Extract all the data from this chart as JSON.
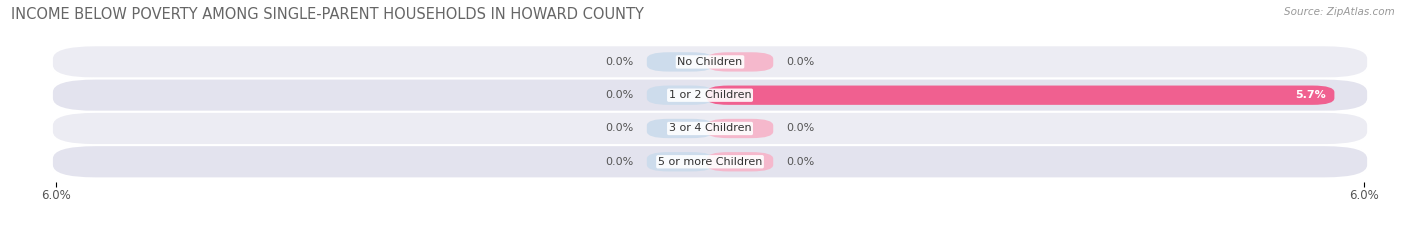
{
  "title": "INCOME BELOW POVERTY AMONG SINGLE-PARENT HOUSEHOLDS IN HOWARD COUNTY",
  "source": "Source: ZipAtlas.com",
  "categories": [
    "No Children",
    "1 or 2 Children",
    "3 or 4 Children",
    "5 or more Children"
  ],
  "single_father": [
    0.0,
    0.0,
    0.0,
    0.0
  ],
  "single_mother": [
    0.0,
    5.7,
    0.0,
    0.0
  ],
  "xlim": 6.0,
  "father_color": "#a8c4e0",
  "father_bg_color": "#cddcec",
  "mother_color": "#f06090",
  "mother_bg_color": "#f5b8cc",
  "row_bg_even": "#ececf3",
  "row_bg_odd": "#e3e3ee",
  "title_color": "#666666",
  "source_color": "#999999",
  "label_color": "#555555",
  "tick_color": "#555555",
  "title_fontsize": 10.5,
  "label_fontsize": 8.0,
  "tick_fontsize": 8.5,
  "legend_fontsize": 8.5,
  "source_fontsize": 7.5,
  "bar_height": 0.52,
  "min_bar_width": 0.55,
  "figsize": [
    14.06,
    2.33
  ],
  "dpi": 100
}
